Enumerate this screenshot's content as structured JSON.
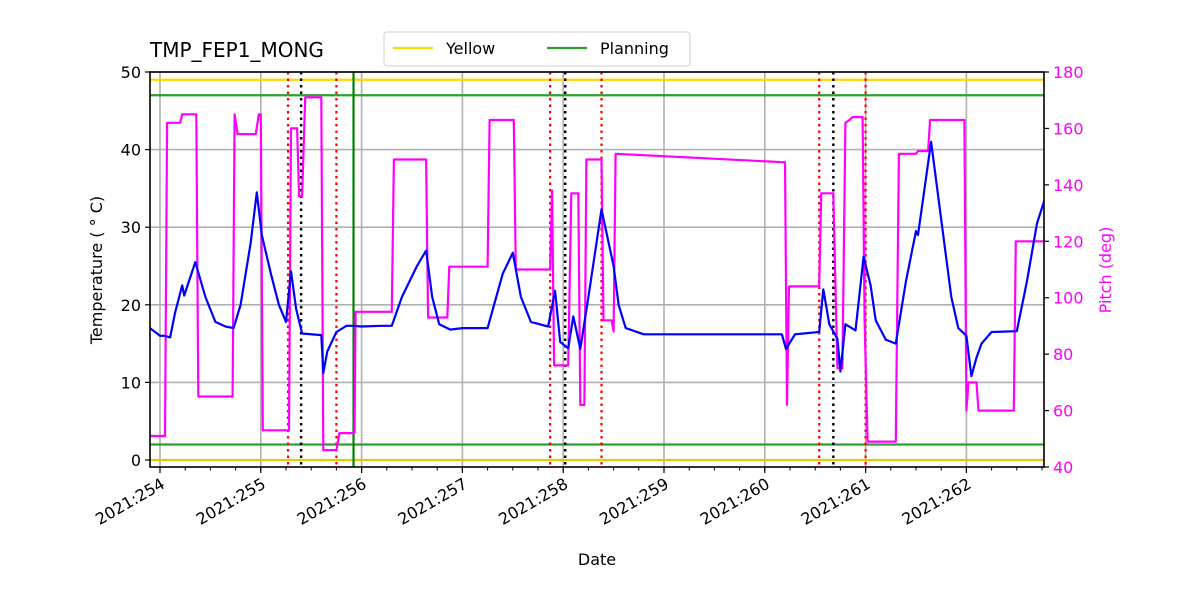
{
  "chart_data": {
    "type": "line",
    "title": "TMP_FEP1_MONG",
    "xlabel": "Date",
    "ylabel": "Temperature ($^\\circ$C)",
    "ylabel_display": "Temperature ( ° C)",
    "y2label": "Pitch (deg)",
    "ylim": [
      -1,
      50
    ],
    "y2lim": [
      40,
      180
    ],
    "xlim": [
      "2021:253.9",
      "2021:262.8"
    ],
    "grid": true,
    "legend": {
      "position": "top-center-outside",
      "entries": [
        {
          "label": "Yellow",
          "color": "#ffd700"
        },
        {
          "label": "Planning",
          "color": "#2ca02c"
        }
      ]
    },
    "x_ticks": [
      "2021:254",
      "2021:255",
      "2021:256",
      "2021:257",
      "2021:258",
      "2021:259",
      "2021:260",
      "2021:261",
      "2021:262"
    ],
    "y_ticks": [
      0,
      10,
      20,
      30,
      40,
      50
    ],
    "y2_ticks": [
      40,
      60,
      80,
      100,
      120,
      140,
      160,
      180
    ],
    "limits": {
      "yellow_high": 49,
      "yellow_low": 0,
      "planning_high": 47,
      "planning_low": 2
    },
    "vertical_markers": {
      "red_dotted_days": [
        255.27,
        255.75,
        257.87,
        258.38,
        260.54,
        261.0
      ],
      "black_dotted_days": [
        255.4,
        258.02,
        260.68
      ],
      "green_solid_day": 255.92
    },
    "series": [
      {
        "name": "TMP_FEP1_MONG temperature",
        "color": "#0000ff",
        "axis": "left",
        "points_day_value": [
          [
            253.9,
            17
          ],
          [
            254.0,
            16
          ],
          [
            254.05,
            16
          ],
          [
            254.1,
            15.8
          ],
          [
            254.15,
            19
          ],
          [
            254.22,
            22.5
          ],
          [
            254.24,
            21.2
          ],
          [
            254.35,
            25.5
          ],
          [
            254.45,
            21
          ],
          [
            254.55,
            17.8
          ],
          [
            254.65,
            17.2
          ],
          [
            254.73,
            17
          ],
          [
            254.8,
            20
          ],
          [
            254.9,
            28
          ],
          [
            254.96,
            34.5
          ],
          [
            255.01,
            29
          ],
          [
            255.1,
            24
          ],
          [
            255.18,
            20
          ],
          [
            255.25,
            17.8
          ],
          [
            255.3,
            24.3
          ],
          [
            255.35,
            19.5
          ],
          [
            255.41,
            16.3
          ],
          [
            255.6,
            16.1
          ],
          [
            255.62,
            11.2
          ],
          [
            255.66,
            14
          ],
          [
            255.75,
            16.5
          ],
          [
            255.85,
            17.3
          ],
          [
            255.92,
            17.3
          ],
          [
            256.0,
            17.2
          ],
          [
            256.2,
            17.3
          ],
          [
            256.3,
            17.3
          ],
          [
            256.4,
            21
          ],
          [
            256.55,
            25
          ],
          [
            256.64,
            27
          ],
          [
            256.7,
            21
          ],
          [
            256.77,
            17.5
          ],
          [
            256.88,
            16.8
          ],
          [
            257.0,
            17
          ],
          [
            257.25,
            17
          ],
          [
            257.4,
            24
          ],
          [
            257.5,
            26.7
          ],
          [
            257.58,
            21
          ],
          [
            257.68,
            17.8
          ],
          [
            257.85,
            17.2
          ],
          [
            257.92,
            21.8
          ],
          [
            257.97,
            15.2
          ],
          [
            258.05,
            14.4
          ],
          [
            258.1,
            18.5
          ],
          [
            258.17,
            14.3
          ],
          [
            258.25,
            21
          ],
          [
            258.38,
            32.3
          ],
          [
            258.5,
            25
          ],
          [
            258.55,
            20
          ],
          [
            258.62,
            17
          ],
          [
            258.8,
            16.2
          ],
          [
            259.2,
            16.2
          ],
          [
            260.0,
            16.2
          ],
          [
            260.17,
            16.2
          ],
          [
            260.21,
            14.3
          ],
          [
            260.3,
            16.2
          ],
          [
            260.54,
            16.5
          ],
          [
            260.58,
            22
          ],
          [
            260.64,
            17.5
          ],
          [
            260.72,
            15.6
          ],
          [
            260.75,
            11.4
          ],
          [
            260.8,
            17.5
          ],
          [
            260.9,
            16.7
          ],
          [
            260.98,
            26.2
          ],
          [
            261.05,
            22.5
          ],
          [
            261.1,
            18
          ],
          [
            261.2,
            15.5
          ],
          [
            261.3,
            15
          ],
          [
            261.4,
            23
          ],
          [
            261.5,
            29.5
          ],
          [
            261.52,
            29
          ],
          [
            261.65,
            41
          ],
          [
            261.75,
            31
          ],
          [
            261.85,
            21
          ],
          [
            261.92,
            17
          ],
          [
            262.0,
            16
          ],
          [
            262.05,
            10.8
          ],
          [
            262.1,
            13.2
          ],
          [
            262.15,
            15
          ],
          [
            262.25,
            16.5
          ],
          [
            262.5,
            16.6
          ],
          [
            262.6,
            23
          ],
          [
            262.7,
            30.5
          ],
          [
            262.8,
            34.5
          ]
        ]
      },
      {
        "name": "Pitch",
        "color": "#ff00ff",
        "axis": "right",
        "points_day_value": [
          [
            253.9,
            51
          ],
          [
            254.05,
            51
          ],
          [
            254.07,
            162
          ],
          [
            254.2,
            162
          ],
          [
            254.22,
            165
          ],
          [
            254.36,
            165
          ],
          [
            254.38,
            65
          ],
          [
            254.72,
            65
          ],
          [
            254.74,
            165
          ],
          [
            254.77,
            158
          ],
          [
            254.95,
            158
          ],
          [
            254.98,
            165
          ],
          [
            255.0,
            165
          ],
          [
            255.02,
            53
          ],
          [
            255.28,
            53
          ],
          [
            255.3,
            160
          ],
          [
            255.36,
            160
          ],
          [
            255.38,
            136
          ],
          [
            255.41,
            136
          ],
          [
            255.44,
            171
          ],
          [
            255.6,
            171
          ],
          [
            255.62,
            46
          ],
          [
            255.75,
            46
          ],
          [
            255.78,
            52
          ],
          [
            255.93,
            52
          ],
          [
            255.94,
            95
          ],
          [
            256.3,
            95
          ],
          [
            256.32,
            149
          ],
          [
            256.64,
            149
          ],
          [
            256.66,
            93
          ],
          [
            256.85,
            93
          ],
          [
            256.87,
            111
          ],
          [
            257.25,
            111
          ],
          [
            257.27,
            163
          ],
          [
            257.51,
            163
          ],
          [
            257.53,
            110
          ],
          [
            257.87,
            110
          ],
          [
            257.89,
            138
          ],
          [
            257.91,
            76
          ],
          [
            258.05,
            76
          ],
          [
            258.08,
            137
          ],
          [
            258.15,
            137
          ],
          [
            258.17,
            62
          ],
          [
            258.21,
            62
          ],
          [
            258.23,
            149
          ],
          [
            258.38,
            149
          ],
          [
            258.4,
            92
          ],
          [
            258.48,
            92
          ],
          [
            258.5,
            88
          ],
          [
            258.52,
            151
          ],
          [
            260.2,
            148
          ],
          [
            260.22,
            62
          ],
          [
            260.24,
            104
          ],
          [
            260.54,
            104
          ],
          [
            260.56,
            137
          ],
          [
            260.68,
            137
          ],
          [
            260.72,
            75
          ],
          [
            260.77,
            75
          ],
          [
            260.8,
            162
          ],
          [
            260.84,
            163
          ],
          [
            260.87,
            164
          ],
          [
            260.97,
            164
          ],
          [
            260.99,
            92
          ],
          [
            261.02,
            49
          ],
          [
            261.3,
            49
          ],
          [
            261.33,
            151
          ],
          [
            261.5,
            151
          ],
          [
            261.52,
            152
          ],
          [
            261.62,
            152
          ],
          [
            261.64,
            163
          ],
          [
            261.98,
            163
          ],
          [
            262.0,
            60
          ],
          [
            262.02,
            70
          ],
          [
            262.1,
            70
          ],
          [
            262.12,
            60
          ],
          [
            262.47,
            60
          ],
          [
            262.49,
            120
          ],
          [
            262.8,
            120
          ]
        ]
      }
    ]
  }
}
